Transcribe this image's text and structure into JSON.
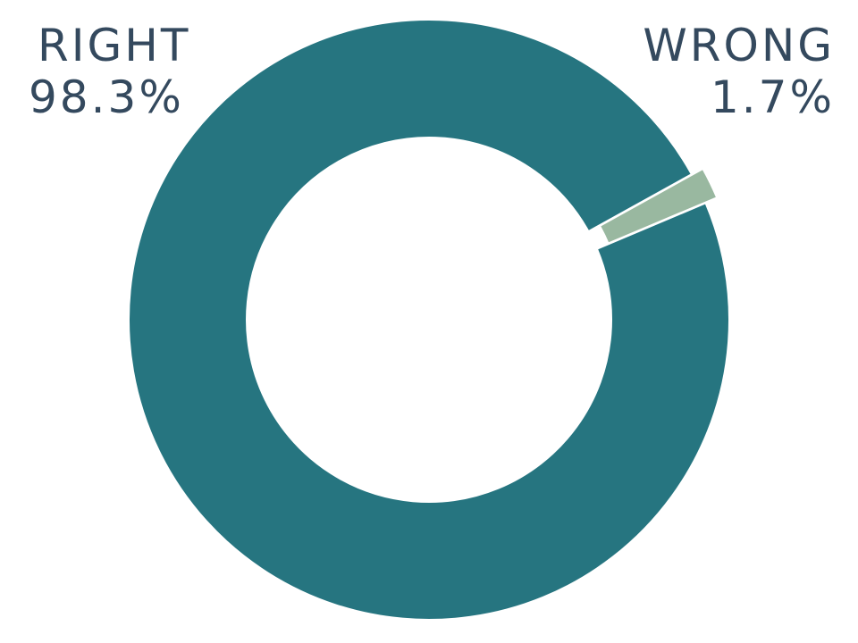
{
  "chart_data": {
    "type": "pie",
    "variant": "donut",
    "slices": [
      {
        "label": "WRONG",
        "value": 1.7,
        "display": "1.7%",
        "color": "#99b8a0",
        "exploded": true
      },
      {
        "label": "RIGHT",
        "value": 98.3,
        "display": "98.3%",
        "color": "#267580",
        "exploded": false
      }
    ],
    "title": "",
    "legend": "none"
  }
}
